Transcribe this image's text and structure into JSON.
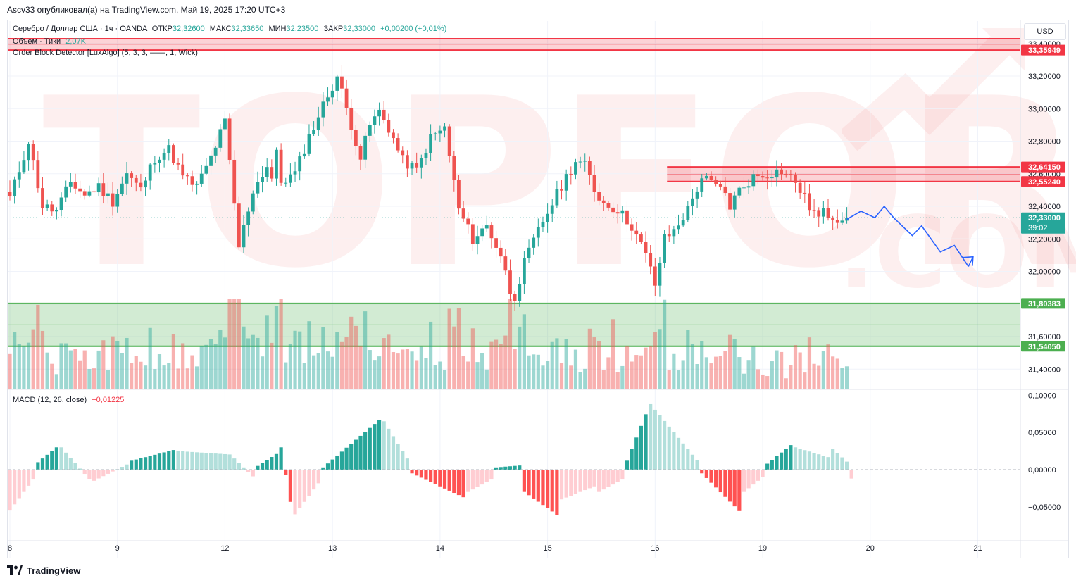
{
  "header": {
    "published_line": "Ascv33 опубликовал(а) на TradingView.com, Май 19, 2025 17:20 UTC+3"
  },
  "legend": {
    "symbol_line": "Серебро / Доллар США · 1ч · OANDA",
    "open_label": "ОТКР",
    "open_value": "32,32600",
    "high_label": "МАКС",
    "high_value": "32,33650",
    "low_label": "МИН",
    "low_value": "32,23500",
    "close_label": "ЗАКР",
    "close_value": "32,33000",
    "change_value": "+0,00200 (+0,01%)",
    "volume_label": "Объем · Тики",
    "volume_value": "2,07K",
    "indicator_label": "Order Block Detector [LuxAlgo] (5, 3, 3, ——, 1, Wick)",
    "macd_label": "MACD (12, 26, close)",
    "macd_value": "−0,01225"
  },
  "currency_button": "USD",
  "watermark": {
    "main": "TOPFOREX",
    "suffix": ".COM"
  },
  "brand": {
    "name": "TradingView"
  },
  "colors": {
    "up": "#26a69a",
    "down": "#ef5350",
    "bear_zone": "#f23645",
    "bull_zone": "#4caf50",
    "projection": "#2962ff"
  },
  "chart_data": {
    "type": "candlestick",
    "symbol": "XAGUSD",
    "timeframe": "1h",
    "ylim": [
      31.28,
      33.52
    ],
    "y_ticks": [
      "33,40000",
      "33,20000",
      "33,00000",
      "32,80000",
      "32,60000",
      "32,40000",
      "32,20000",
      "32,00000",
      "31,80000",
      "31,60000",
      "31,40000"
    ],
    "y_tick_values": [
      33.4,
      33.2,
      33.0,
      32.8,
      32.6,
      32.4,
      32.2,
      32.0,
      31.8,
      31.6,
      31.4
    ],
    "x_labels": [
      "8",
      "9",
      "12",
      "13",
      "14",
      "15",
      "16",
      "19",
      "20",
      "21"
    ],
    "x_label_bars": [
      0,
      23,
      46,
      69,
      92,
      115,
      138,
      161,
      184,
      207
    ],
    "price_labels": [
      {
        "text": "33,35949",
        "value": 33.35949,
        "color": "#f23645"
      },
      {
        "text": "32,64150",
        "value": 32.6415,
        "color": "#f23645"
      },
      {
        "text": "32,55240",
        "value": 32.5524,
        "color": "#f23645"
      },
      {
        "text": "32,33000",
        "value": 32.33,
        "color": "#26a69a",
        "countdown": "39:02"
      },
      {
        "text": "31,80383",
        "value": 31.80383,
        "color": "#4caf50"
      },
      {
        "text": "31,54050",
        "value": 31.5405,
        "color": "#4caf50"
      }
    ],
    "order_blocks": [
      {
        "kind": "bearish",
        "top": 33.54,
        "bottom": 33.35949,
        "start_bar": 0
      },
      {
        "kind": "bearish",
        "top": 32.6415,
        "bottom": 32.5524,
        "start_bar": 141
      },
      {
        "kind": "bullish",
        "top": 31.80383,
        "bottom": 31.5405,
        "start_bar": 0
      }
    ],
    "projection": {
      "bars": [
        179,
        182,
        185,
        187,
        189,
        193,
        195,
        199,
        202,
        205
      ],
      "values": [
        32.32,
        32.37,
        32.33,
        32.4,
        32.33,
        32.22,
        32.28,
        32.12,
        32.16,
        32.03
      ],
      "end_bar": 206,
      "end_value": 32.09
    },
    "close_path": {
      "bars": [
        0,
        4,
        7,
        10,
        13,
        16,
        19,
        22,
        25,
        28,
        31,
        34,
        37,
        40,
        43,
        46,
        49,
        52,
        55,
        56,
        57,
        58,
        61,
        64,
        67,
        70,
        72,
        75,
        77,
        79,
        81,
        84,
        87,
        90,
        93,
        96,
        99,
        102,
        105,
        107,
        108,
        110,
        113,
        116,
        119,
        121,
        123,
        125,
        127,
        130,
        133,
        136,
        138,
        140,
        142,
        145,
        148,
        151,
        153,
        154,
        156,
        159,
        162,
        165,
        168,
        171,
        173,
        174,
        177,
        179
      ],
      "values": [
        32.45,
        32.8,
        32.4,
        32.37,
        32.55,
        32.47,
        32.52,
        32.43,
        32.6,
        32.5,
        32.7,
        32.75,
        32.58,
        32.52,
        32.7,
        32.92,
        32.15,
        32.5,
        32.65,
        32.57,
        32.72,
        32.55,
        32.6,
        32.83,
        33.02,
        33.2,
        33.0,
        32.7,
        32.9,
        32.98,
        32.88,
        32.68,
        32.62,
        32.82,
        32.88,
        32.38,
        32.2,
        32.28,
        32.1,
        31.88,
        31.85,
        32.05,
        32.25,
        32.42,
        32.58,
        32.68,
        32.65,
        32.5,
        32.42,
        32.38,
        32.28,
        32.1,
        31.92,
        32.2,
        32.25,
        32.38,
        32.58,
        32.52,
        32.48,
        32.4,
        32.5,
        32.58,
        32.6,
        32.62,
        32.55,
        32.4,
        32.33,
        32.36,
        32.33,
        32.33
      ]
    },
    "volume_scale_max": 2.6,
    "macd": {
      "ylim": [
        -0.088,
        0.105
      ],
      "y_ticks": [
        "0,10000",
        "0,05000",
        "0,00000",
        "−0,05000"
      ],
      "y_tick_values": [
        0.1,
        0.05,
        0.0,
        -0.05
      ],
      "segments": [
        {
          "from_bar": 0,
          "to_bar": 6,
          "from": -0.055,
          "to": -0.005
        },
        {
          "from_bar": 6,
          "to_bar": 11,
          "from": 0.01,
          "to": 0.035
        },
        {
          "from_bar": 11,
          "to_bar": 18,
          "from": 0.03,
          "to": -0.02
        },
        {
          "from_bar": 18,
          "to_bar": 26,
          "from": -0.015,
          "to": 0.01
        },
        {
          "from_bar": 26,
          "to_bar": 36,
          "from": 0.012,
          "to": 0.028
        },
        {
          "from_bar": 36,
          "to_bar": 48,
          "from": 0.025,
          "to": 0.02
        },
        {
          "from_bar": 48,
          "to_bar": 53,
          "from": 0.015,
          "to": -0.015
        },
        {
          "from_bar": 53,
          "to_bar": 58,
          "from": 0.005,
          "to": 0.025
        },
        {
          "from_bar": 58,
          "to_bar": 61,
          "from": 0.03,
          "to": -0.08
        },
        {
          "from_bar": 61,
          "to_bar": 67,
          "from": -0.06,
          "to": -0.01
        },
        {
          "from_bar": 67,
          "to_bar": 80,
          "from": 0.003,
          "to": 0.072
        },
        {
          "from_bar": 80,
          "to_bar": 86,
          "from": 0.065,
          "to": 0.005
        },
        {
          "from_bar": 86,
          "to_bar": 98,
          "from": -0.005,
          "to": -0.04
        },
        {
          "from_bar": 98,
          "to_bar": 104,
          "from": -0.03,
          "to": -0.01
        },
        {
          "from_bar": 104,
          "to_bar": 110,
          "from": 0.003,
          "to": 0.006
        },
        {
          "from_bar": 110,
          "to_bar": 118,
          "from": -0.03,
          "to": -0.065
        },
        {
          "from_bar": 118,
          "to_bar": 126,
          "from": -0.04,
          "to": -0.02
        },
        {
          "from_bar": 126,
          "to_bar": 132,
          "from": -0.03,
          "to": -0.01
        },
        {
          "from_bar": 132,
          "to_bar": 137,
          "from": 0.012,
          "to": 0.09
        },
        {
          "from_bar": 137,
          "to_bar": 148,
          "from": 0.088,
          "to": 0.005
        },
        {
          "from_bar": 148,
          "to_bar": 157,
          "from": -0.005,
          "to": -0.062
        },
        {
          "from_bar": 157,
          "to_bar": 162,
          "from": -0.03,
          "to": -0.005
        },
        {
          "from_bar": 162,
          "to_bar": 168,
          "from": 0.008,
          "to": 0.038
        },
        {
          "from_bar": 168,
          "to_bar": 176,
          "from": 0.03,
          "to": 0.015
        },
        {
          "from_bar": 176,
          "to_bar": 180,
          "from": 0.028,
          "to": 0.005
        },
        {
          "from_bar": 180,
          "to_bar": 181,
          "from": -0.012,
          "to": -0.012
        }
      ]
    }
  }
}
